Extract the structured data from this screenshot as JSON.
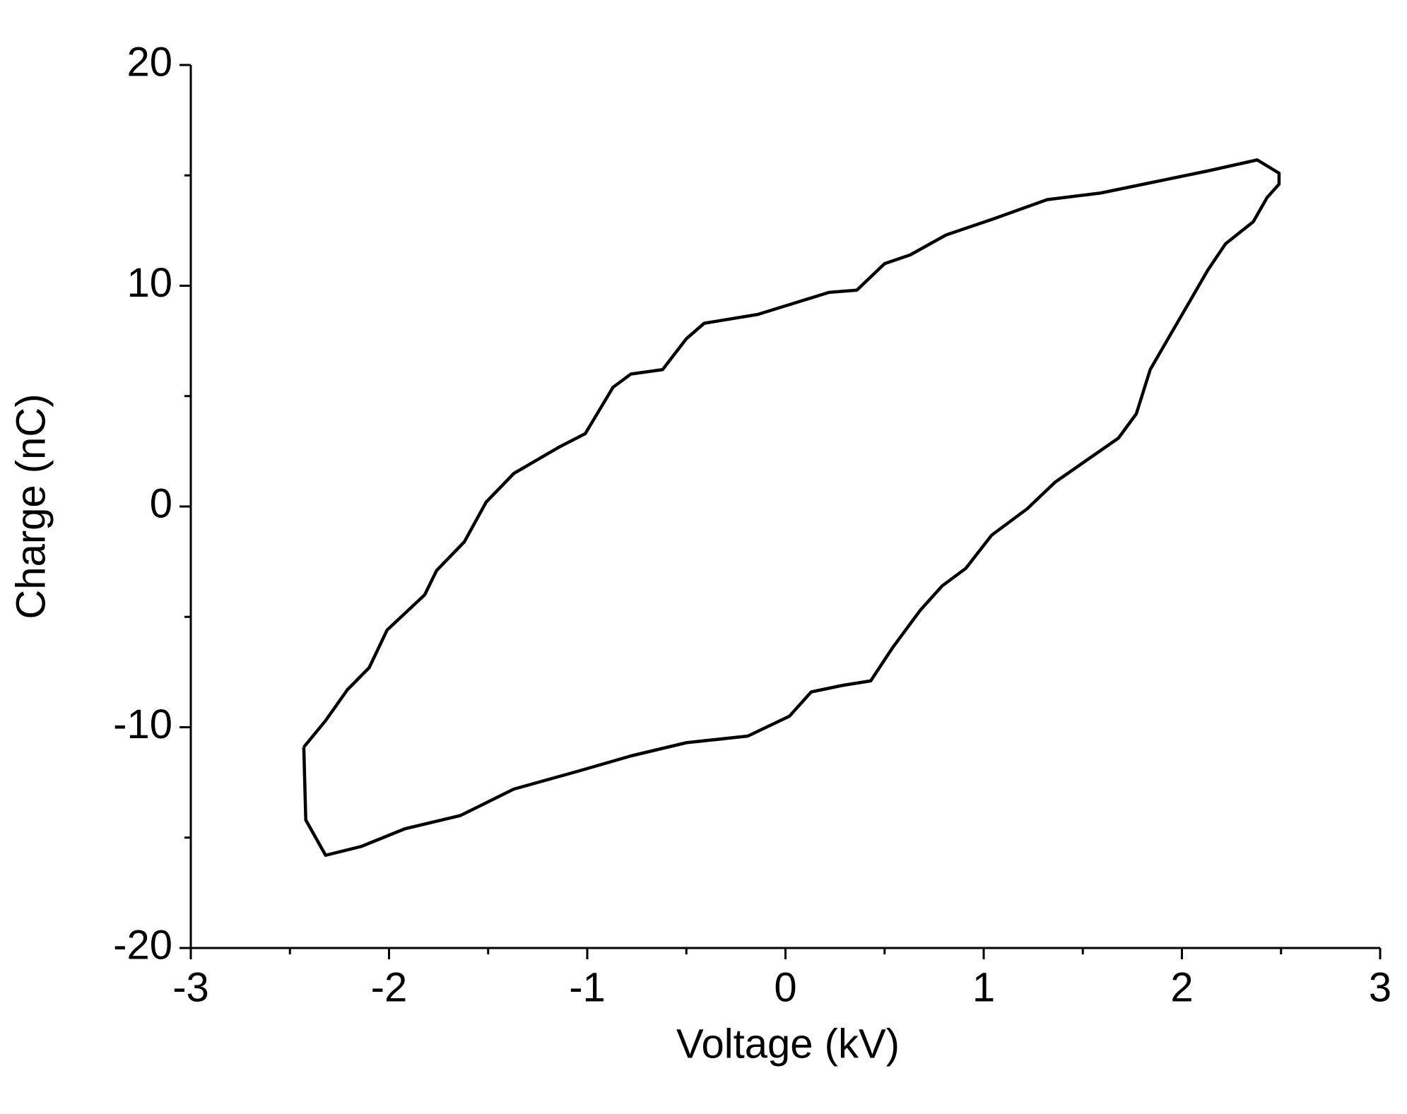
{
  "chart_data": {
    "type": "line",
    "xlabel": "Voltage (kV)",
    "ylabel": "Charge (nC)",
    "xlim": [
      -3,
      3
    ],
    "ylim": [
      -20,
      20
    ],
    "xticks": [
      -3,
      -2,
      -1,
      0,
      1,
      2,
      3
    ],
    "yticks": [
      -20,
      -10,
      0,
      10,
      20
    ],
    "xminor": [
      -2.5,
      -1.5,
      -0.5,
      0.5,
      1.5,
      2.5
    ],
    "yminor": [
      -15,
      -5,
      5,
      15
    ],
    "grid": false,
    "series": [
      {
        "color": "#000000",
        "x": [
          -2.43,
          -2.32,
          -2.21,
          -2.1,
          -2.01,
          -1.82,
          -1.76,
          -1.62,
          -1.51,
          -1.37,
          -1.14,
          -1.01,
          -0.87,
          -0.78,
          -0.62,
          -0.5,
          -0.41,
          -0.14,
          0.04,
          0.22,
          0.36,
          0.5,
          0.63,
          0.81,
          1.04,
          1.32,
          1.59,
          1.86,
          2.13,
          2.38,
          2.49,
          2.49,
          2.43,
          2.36,
          2.22,
          2.13,
          2.04,
          1.93,
          1.84,
          1.77,
          1.68,
          1.52,
          1.36,
          1.22,
          1.04,
          0.91,
          0.79,
          0.68,
          0.54,
          0.43,
          0.29,
          0.13,
          0.02,
          -0.19,
          -0.5,
          -0.78,
          -1.05,
          -1.37,
          -1.64,
          -1.92,
          -2.14,
          -2.32,
          -2.42,
          -2.43
        ],
        "values": [
          -10.9,
          -9.7,
          -8.3,
          -7.3,
          -5.6,
          -4.0,
          -2.9,
          -1.6,
          0.2,
          1.5,
          2.7,
          3.3,
          5.4,
          6.0,
          6.2,
          7.6,
          8.3,
          8.7,
          9.2,
          9.7,
          9.8,
          11.0,
          11.4,
          12.3,
          13.0,
          13.9,
          14.2,
          14.7,
          15.2,
          15.7,
          15.1,
          14.6,
          14.0,
          12.9,
          11.9,
          10.7,
          9.3,
          7.6,
          6.2,
          4.2,
          3.1,
          2.1,
          1.1,
          -0.1,
          -1.3,
          -2.8,
          -3.6,
          -4.7,
          -6.4,
          -7.9,
          -8.1,
          -8.4,
          -9.5,
          -10.4,
          -10.7,
          -11.3,
          -12.0,
          -12.8,
          -14.0,
          -14.6,
          -15.4,
          -15.8,
          -14.2,
          -10.9
        ]
      }
    ]
  }
}
